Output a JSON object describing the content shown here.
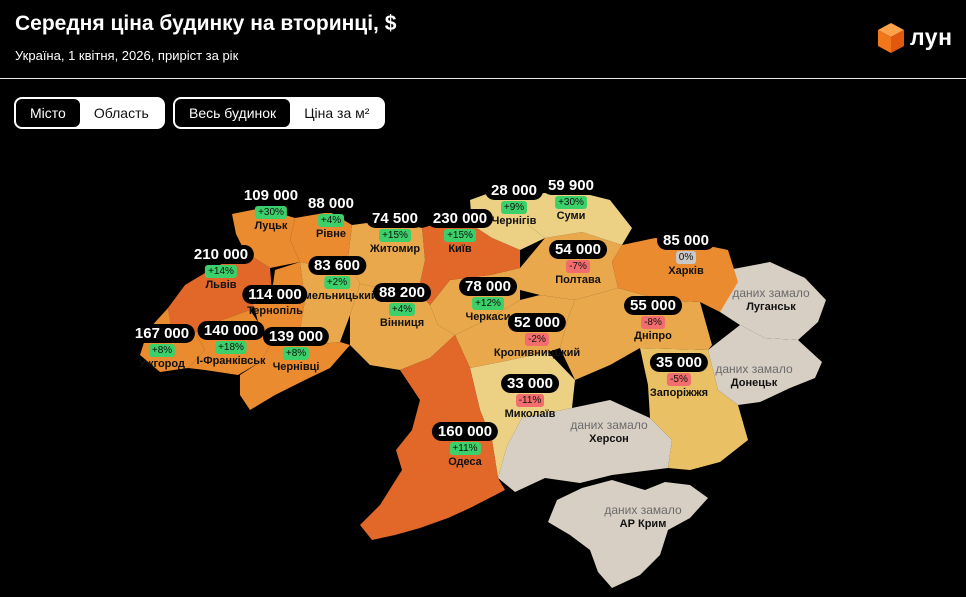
{
  "header": {
    "title": "Середня ціна будинку на вторинці, $",
    "subtitle": "Україна, 1 квітня, 2026, приріст за рік",
    "logo_text": "лун"
  },
  "toggles": {
    "scope": {
      "options": [
        "Місто",
        "Область"
      ],
      "selected": "Місто"
    },
    "metric": {
      "options": [
        "Весь будинок",
        "Ціна за м²"
      ],
      "selected": "Весь будинок"
    }
  },
  "no_data_text": "даних замало",
  "colors": {
    "very_high": "#e2682a",
    "high": "#ea8b2f",
    "mid": "#eaa84c",
    "low": "#e9c063",
    "lowest": "#ecd184",
    "no_data": "#d8cfc4",
    "positive": "#3cd06a",
    "negative": "#f26d6d",
    "neutral": "#c8c8c8"
  },
  "regions": [
    {
      "city": "Луцьк",
      "price": "109 000",
      "change": "+30%",
      "trend": "pos"
    },
    {
      "city": "Рівне",
      "price": "88 000",
      "change": "+4%",
      "trend": "pos"
    },
    {
      "city": "Житомир",
      "price": "74 500",
      "change": "+15%",
      "trend": "pos"
    },
    {
      "city": "Київ",
      "price": "230 000",
      "change": "+15%",
      "trend": "pos"
    },
    {
      "city": "Чернігів",
      "price": "28 000",
      "change": "+9%",
      "trend": "pos"
    },
    {
      "city": "Суми",
      "price": "59 900",
      "change": "+30%",
      "trend": "pos"
    },
    {
      "city": "Львів",
      "price": "210 000",
      "change": "+14%",
      "trend": "pos"
    },
    {
      "city": "Хмельницький",
      "price": "83 600",
      "change": "+2%",
      "trend": "pos"
    },
    {
      "city": "Тернопіль",
      "price": "114 000",
      "change": "",
      "trend": ""
    },
    {
      "city": "Вінниця",
      "price": "88 200",
      "change": "+4%",
      "trend": "pos"
    },
    {
      "city": "Черкаси",
      "price": "78 000",
      "change": "+12%",
      "trend": "pos"
    },
    {
      "city": "Полтава",
      "price": "54 000",
      "change": "-7%",
      "trend": "neg"
    },
    {
      "city": "Харків",
      "price": "85 000",
      "change": "0%",
      "trend": "zero"
    },
    {
      "city": "Кропивницький",
      "price": "52 000",
      "change": "-2%",
      "trend": "neg"
    },
    {
      "city": "Дніпро",
      "price": "55 000",
      "change": "-8%",
      "trend": "neg"
    },
    {
      "city": "Ужгород",
      "price": "167 000",
      "change": "+8%",
      "trend": "pos"
    },
    {
      "city": "І-Франківськ",
      "price": "140 000",
      "change": "+18%",
      "trend": "pos"
    },
    {
      "city": "Чернівці",
      "price": "139 000",
      "change": "+8%",
      "trend": "pos"
    },
    {
      "city": "Запоріжжя",
      "price": "35 000",
      "change": "-5%",
      "trend": "neg"
    },
    {
      "city": "Миколаїв",
      "price": "33 000",
      "change": "-11%",
      "trend": "neg"
    },
    {
      "city": "Одеса",
      "price": "160 000",
      "change": "+11%",
      "trend": "pos"
    }
  ],
  "no_data_regions": [
    {
      "city": "Луганськ"
    },
    {
      "city": "Донецьк"
    },
    {
      "city": "Херсон"
    },
    {
      "city": "АР Крим"
    }
  ]
}
